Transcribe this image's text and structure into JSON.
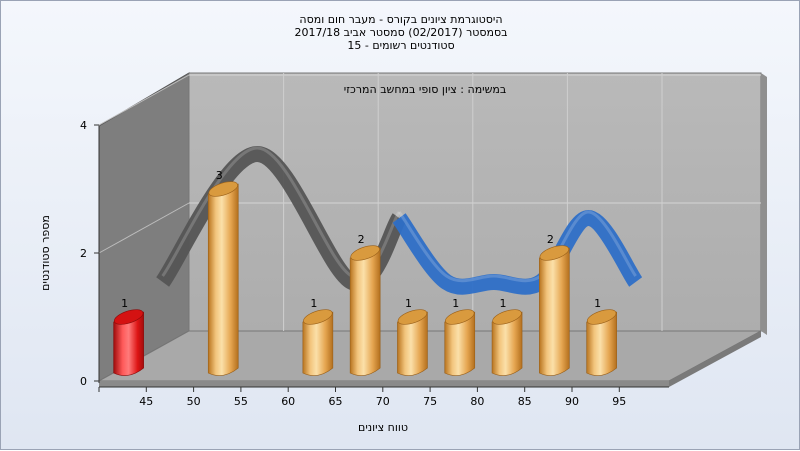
{
  "header": {
    "title_line1": "היסטוגרמת ציונים בקורס - מעבר חום ומסה",
    "title_line2": "בסמסטר  (02/2017)  סמסטר אביב 2017/18",
    "title_line3": "סטודנטים רשומים - 15"
  },
  "chart_data": {
    "type": "bar",
    "title": "במשימה : ציון סופי במחשב המרכזי",
    "xlabel": "טווח ציונים",
    "ylabel": "מספר סטודנטים",
    "ylim": [
      0,
      4
    ],
    "yticks": [
      "0",
      "2",
      "4"
    ],
    "xticks": [
      "45",
      "50",
      "55",
      "60",
      "65",
      "70",
      "75",
      "80",
      "85",
      "90",
      "95"
    ],
    "categories": [
      "45",
      "55",
      "65",
      "70",
      "75",
      "80",
      "85",
      "90",
      "95"
    ],
    "values": [
      1,
      3,
      1,
      2,
      1,
      1,
      1,
      2,
      1
    ],
    "data_labels": [
      "1",
      "3",
      "1",
      "2",
      "1",
      "1",
      "1",
      "2",
      "1"
    ],
    "highlight_category": "45",
    "colors": {
      "bar": "#e8a94e",
      "bar_highlight": "#e21a1a",
      "ribbon_failing": "#555555",
      "ribbon_passing": "#2e6fc7",
      "wall": "#b3b3b3",
      "side_wall": "#7e7e7e",
      "floor": "#a9a9a9"
    },
    "grid": true,
    "legend": "none"
  }
}
